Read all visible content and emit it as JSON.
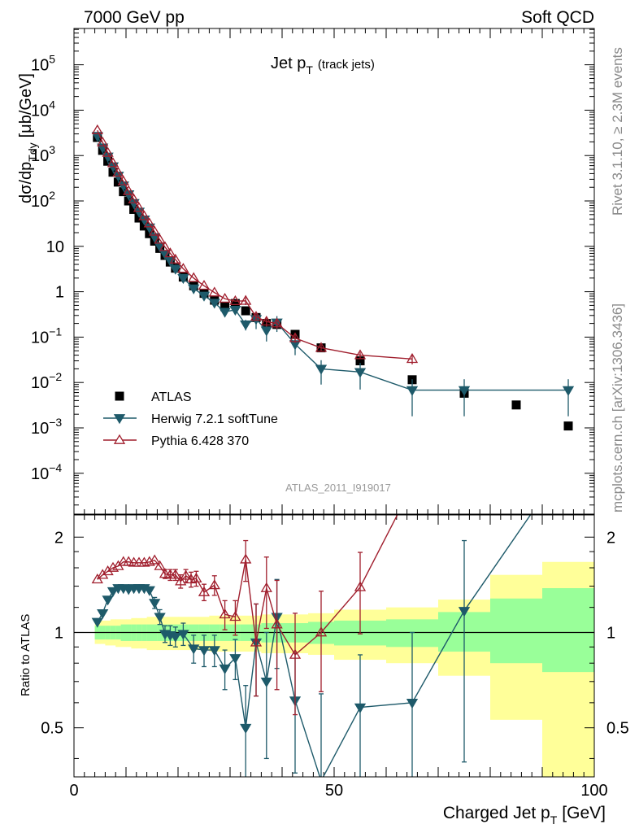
{
  "header": {
    "left": "7000 GeV pp",
    "right": "Soft QCD"
  },
  "side_labels": {
    "rivet": "Rivet 3.1.10, ≥ 2.3M events",
    "site": "mcplots.cern.ch [arXiv:1306.3436]"
  },
  "chart_data": [
    {
      "panel": "main",
      "type": "scatter",
      "title": "Jet p",
      "title_sub": "T",
      "title_suffix": "(track jets)",
      "ylabel": "dσ/dp",
      "ylabel_sub": "Tdy",
      "ylabel_unit": "[μb/GeV]",
      "xlabel": "Charged Jet p",
      "xlabel_sub": "T",
      "xlabel_unit": "[GeV]",
      "watermark": "ATLAS_2011_I919017",
      "xlim": [
        0,
        100
      ],
      "ylim_log10": [
        -4.9,
        5.8
      ],
      "yscale": "log",
      "legend_position": "bottom-left",
      "y_ticks": [
        {
          "exp": -4,
          "text": "10",
          "sup": "−4"
        },
        {
          "exp": -3,
          "text": "10",
          "sup": "−3"
        },
        {
          "exp": -2,
          "text": "10",
          "sup": "−2"
        },
        {
          "exp": -1,
          "text": "10",
          "sup": "−1"
        },
        {
          "exp": 0,
          "text": "1",
          "sup": ""
        },
        {
          "exp": 1,
          "text": "10",
          "sup": ""
        },
        {
          "exp": 2,
          "text": "10",
          "sup": "2"
        },
        {
          "exp": 3,
          "text": "10",
          "sup": "3"
        },
        {
          "exp": 4,
          "text": "10",
          "sup": "4"
        },
        {
          "exp": 5,
          "text": "10",
          "sup": "5"
        }
      ],
      "series": [
        {
          "name": "ATLAS",
          "color": "#000000",
          "marker": "square",
          "x": [
            4.5,
            5.5,
            6.5,
            7.5,
            8.5,
            9.5,
            10.5,
            11.5,
            12.5,
            13.5,
            14.5,
            15.5,
            16.5,
            17.5,
            18.5,
            19.5,
            21,
            23,
            25,
            27,
            29,
            31,
            33,
            35,
            37,
            39,
            42.5,
            47.5,
            55,
            65,
            75,
            85,
            95
          ],
          "y": [
            2500,
            1300,
            750,
            430,
            260,
            160,
            100,
            65,
            42,
            28,
            19,
            13,
            9,
            6.3,
            4.5,
            3.3,
            2.1,
            1.35,
            0.92,
            0.65,
            0.47,
            0.55,
            0.38,
            0.27,
            0.2,
            0.19,
            0.115,
            0.058,
            0.03,
            0.0115,
            0.0058,
            0.0032,
            0.0011
          ],
          "yerr_lo": [],
          "yerr_hi": []
        },
        {
          "name": "Herwig 7.2.1 softTune",
          "color": "#1e5a6a",
          "marker": "triangle-down",
          "x": [
            4.5,
            5.5,
            6.5,
            7.5,
            8.5,
            9.5,
            10.5,
            11.5,
            12.5,
            13.5,
            14.5,
            15.5,
            16.5,
            17.5,
            18.5,
            19.5,
            21,
            23,
            25,
            27,
            29,
            31,
            33,
            35,
            37,
            39,
            42.5,
            47.5,
            55,
            65,
            75,
            95
          ],
          "y": [
            2700,
            1500,
            950,
            580,
            360,
            220,
            140,
            90,
            58,
            39,
            26,
            16,
            10,
            6.8,
            4.8,
            3.2,
            2,
            1.18,
            0.82,
            0.57,
            0.36,
            0.4,
            0.19,
            0.25,
            0.14,
            0.21,
            0.07,
            0.02,
            0.017,
            0.0068,
            0.0068,
            0.0068
          ],
          "yerr_lo": [
            0,
            0,
            0,
            0,
            0,
            0,
            0,
            0,
            0,
            0,
            0,
            0,
            0,
            0,
            0,
            0,
            0,
            0,
            0,
            0.05,
            0.05,
            0.06,
            0.05,
            0.1,
            0.06,
            0.08,
            0.03,
            0.011,
            0.01,
            0.005,
            0.005,
            0.005
          ],
          "yerr_hi": [
            0,
            0,
            0,
            0,
            0,
            0,
            0,
            0,
            0,
            0,
            0,
            0,
            0,
            0,
            0,
            0,
            0,
            0,
            0,
            0.05,
            0.05,
            0.06,
            0.05,
            0.1,
            0.06,
            0.08,
            0.03,
            0.011,
            0.01,
            0.005,
            0.005,
            0.005
          ]
        },
        {
          "name": "Pythia 6.428 370",
          "color": "#a01e2d",
          "marker": "triangle-up-open",
          "x": [
            4.5,
            5.5,
            6.5,
            7.5,
            8.5,
            9.5,
            10.5,
            11.5,
            12.5,
            13.5,
            14.5,
            15.5,
            16.5,
            17.5,
            18.5,
            19.5,
            21,
            23,
            25,
            27,
            29,
            31,
            33,
            35,
            37,
            39,
            42.5,
            47.5,
            55,
            65
          ],
          "y": [
            3600,
            1950,
            1150,
            680,
            420,
            270,
            165,
            108,
            70,
            46,
            32,
            21,
            14,
            9.6,
            7,
            5.1,
            3.2,
            2,
            1.35,
            0.96,
            0.7,
            0.62,
            0.63,
            0.28,
            0.22,
            0.2,
            0.095,
            0.058,
            0.04,
            0.033
          ],
          "yerr_lo": [
            0,
            0,
            0,
            0,
            0,
            0,
            0,
            0,
            0,
            0,
            0,
            0,
            0,
            0,
            0,
            0,
            0,
            0,
            0,
            0,
            0,
            0,
            0.12,
            0.05,
            0.05,
            0.05,
            0.02,
            0.01,
            0.007,
            0.008
          ],
          "yerr_hi": [
            0,
            0,
            0,
            0,
            0,
            0,
            0,
            0,
            0,
            0,
            0,
            0,
            0,
            0,
            0,
            0,
            0,
            0,
            0,
            0,
            0,
            0,
            0.12,
            0.05,
            0.05,
            0.05,
            0.02,
            0.01,
            0.007,
            0.008
          ]
        }
      ]
    },
    {
      "panel": "ratio",
      "type": "line",
      "ylabel": "Ratio to ATLAS",
      "xlim": [
        0,
        100
      ],
      "ylim": [
        0.35,
        2.35
      ],
      "x_ticks": [
        0,
        50,
        100
      ],
      "y_ticks": [
        0.5,
        1,
        2
      ],
      "bands": {
        "edges": [
          4,
          5,
          6,
          7,
          8,
          9,
          10,
          11,
          12,
          13,
          14,
          15,
          16,
          17,
          18,
          19,
          20,
          22,
          24,
          26,
          28,
          30,
          32,
          34,
          36,
          38,
          40,
          45,
          50,
          60,
          70,
          80,
          90,
          100
        ],
        "yellow_lo": [
          0.92,
          0.92,
          0.91,
          0.91,
          0.9,
          0.9,
          0.9,
          0.89,
          0.89,
          0.89,
          0.88,
          0.88,
          0.88,
          0.88,
          0.88,
          0.88,
          0.88,
          0.88,
          0.88,
          0.87,
          0.87,
          0.87,
          0.87,
          0.87,
          0.86,
          0.86,
          0.86,
          0.85,
          0.82,
          0.8,
          0.73,
          0.53,
          0.3
        ],
        "yellow_hi": [
          1.08,
          1.09,
          1.09,
          1.1,
          1.1,
          1.1,
          1.1,
          1.11,
          1.11,
          1.11,
          1.12,
          1.12,
          1.12,
          1.12,
          1.12,
          1.12,
          1.12,
          1.12,
          1.12,
          1.13,
          1.13,
          1.13,
          1.13,
          1.13,
          1.14,
          1.14,
          1.14,
          1.15,
          1.18,
          1.2,
          1.27,
          1.52,
          1.67
        ],
        "green_lo": [
          0.95,
          0.95,
          0.95,
          0.95,
          0.95,
          0.94,
          0.94,
          0.94,
          0.94,
          0.94,
          0.94,
          0.94,
          0.94,
          0.94,
          0.94,
          0.94,
          0.94,
          0.94,
          0.94,
          0.94,
          0.94,
          0.94,
          0.94,
          0.94,
          0.93,
          0.93,
          0.93,
          0.92,
          0.91,
          0.9,
          0.87,
          0.8,
          0.75
        ],
        "green_hi": [
          1.05,
          1.05,
          1.05,
          1.05,
          1.05,
          1.06,
          1.06,
          1.06,
          1.06,
          1.06,
          1.06,
          1.06,
          1.06,
          1.06,
          1.06,
          1.06,
          1.06,
          1.06,
          1.06,
          1.06,
          1.06,
          1.06,
          1.06,
          1.06,
          1.07,
          1.07,
          1.07,
          1.08,
          1.09,
          1.1,
          1.16,
          1.28,
          1.38
        ]
      },
      "series": [
        {
          "name": "Herwig 7.2.1 softTune",
          "color": "#1e5a6a",
          "x": [
            4.5,
            5.5,
            6.5,
            7.5,
            8.5,
            9.5,
            10.5,
            11.5,
            12.5,
            13.5,
            14.5,
            15.5,
            16.5,
            17.5,
            18.5,
            19.5,
            21,
            23,
            25,
            27,
            29,
            31,
            33,
            35,
            37,
            39,
            42.5,
            47.5,
            55,
            65,
            75,
            95
          ],
          "y": [
            1.08,
            1.15,
            1.27,
            1.35,
            1.38,
            1.38,
            1.37,
            1.38,
            1.38,
            1.38,
            1.36,
            1.24,
            1.12,
            0.99,
            0.98,
            0.97,
            0.99,
            0.89,
            0.88,
            0.88,
            0.77,
            0.83,
            0.5,
            0.93,
            0.7,
            1.12,
            0.61,
            0.34,
            0.58,
            0.6,
            1.17,
            3.5
          ],
          "yerr": [
            0,
            0,
            0,
            0,
            0,
            0,
            0,
            0,
            0,
            0,
            0,
            0.05,
            0.06,
            0.06,
            0.07,
            0.07,
            0.08,
            0.09,
            0.1,
            0.1,
            0.11,
            0.12,
            0.18,
            0.3,
            0.3,
            0.35,
            0.25,
            0.3,
            0.27,
            0.4,
            0.78,
            0
          ]
        },
        {
          "name": "Pythia 6.428 370",
          "color": "#a01e2d",
          "x": [
            4.5,
            5.5,
            6.5,
            7.5,
            8.5,
            9.5,
            10.5,
            11.5,
            12.5,
            13.5,
            14.5,
            15.5,
            16.5,
            17.5,
            18.5,
            19.5,
            20.5,
            21.5,
            22.5,
            23.5,
            25,
            27,
            29,
            31,
            33,
            35,
            37,
            39,
            42.5,
            47.5,
            55,
            65
          ],
          "y": [
            1.47,
            1.52,
            1.56,
            1.6,
            1.62,
            1.67,
            1.67,
            1.66,
            1.66,
            1.66,
            1.67,
            1.69,
            1.62,
            1.53,
            1.52,
            1.52,
            1.45,
            1.51,
            1.47,
            1.48,
            1.34,
            1.41,
            1.14,
            1.12,
            1.7,
            0.93,
            1.38,
            1.06,
            0.85,
            1.0,
            1.39,
            2.9
          ],
          "yerr": [
            0,
            0,
            0,
            0,
            0,
            0,
            0,
            0,
            0,
            0,
            0,
            0,
            0,
            0.05,
            0.06,
            0.06,
            0.07,
            0.07,
            0.08,
            0.08,
            0.08,
            0.1,
            0.12,
            0.14,
            0.25,
            0.3,
            0.35,
            0.4,
            0.3,
            0.35,
            0.4,
            0
          ]
        }
      ]
    }
  ]
}
